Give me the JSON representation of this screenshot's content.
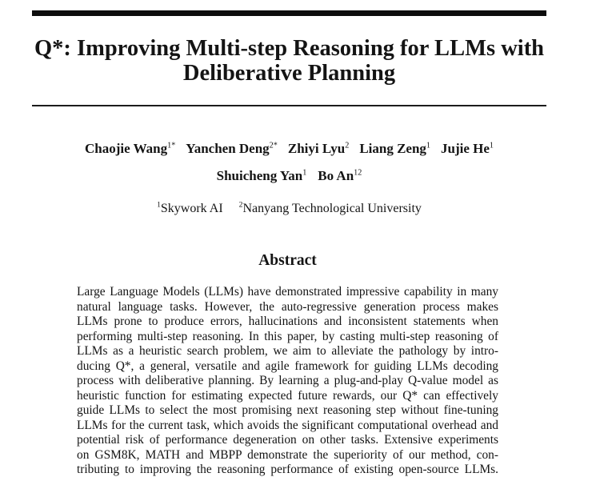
{
  "colors": {
    "background": "#ffffff",
    "text": "#141414",
    "rule": "#0d0d0d"
  },
  "title": {
    "line1": "Q*: Improving Multi-step Reasoning for LLMs with",
    "line2": "Deliberative Planning"
  },
  "authors": {
    "row1": [
      {
        "name": "Chaojie Wang",
        "sup": "1*"
      },
      {
        "name": "Yanchen Deng",
        "sup": "2*"
      },
      {
        "name": "Zhiyi Lyu",
        "sup": "2"
      },
      {
        "name": "Liang Zeng",
        "sup": "1"
      },
      {
        "name": "Jujie He",
        "sup": "1"
      }
    ],
    "row2": [
      {
        "name": "Shuicheng Yan",
        "sup": "1"
      },
      {
        "name": "Bo An",
        "sup": "12"
      }
    ]
  },
  "affiliations": [
    {
      "sup": "1",
      "name": "Skywork AI"
    },
    {
      "sup": "2",
      "name": "Nanyang Technological University"
    }
  ],
  "abstract": {
    "heading": "Abstract",
    "lines": [
      "Large Language Models (LLMs) have demonstrated impressive capability in many",
      "natural language tasks. However, the auto-regressive generation process makes",
      "LLMs prone to produce errors, hallucinations and inconsistent statements when",
      "performing multi-step reasoning. In this paper, by casting multi-step reasoning of",
      "LLMs as a heuristic search problem, we aim to alleviate the pathology by intro-",
      "ducing Q*, a general, versatile and agile framework for guiding LLMs decoding",
      "process with deliberative planning. By learning a plug-and-play Q-value model as",
      "heuristic function for estimating expected future rewards, our Q* can effectively",
      "guide LLMs to select the most promising next reasoning step without fine-tuning",
      "LLMs for the current task, which avoids the significant computational overhead and",
      "potential risk of performance degeneration on other tasks. Extensive experiments",
      "on GSM8K, MATH and MBPP demonstrate the superiority of our method, con-",
      "tributing to improving the reasoning performance of existing open-source LLMs."
    ]
  }
}
